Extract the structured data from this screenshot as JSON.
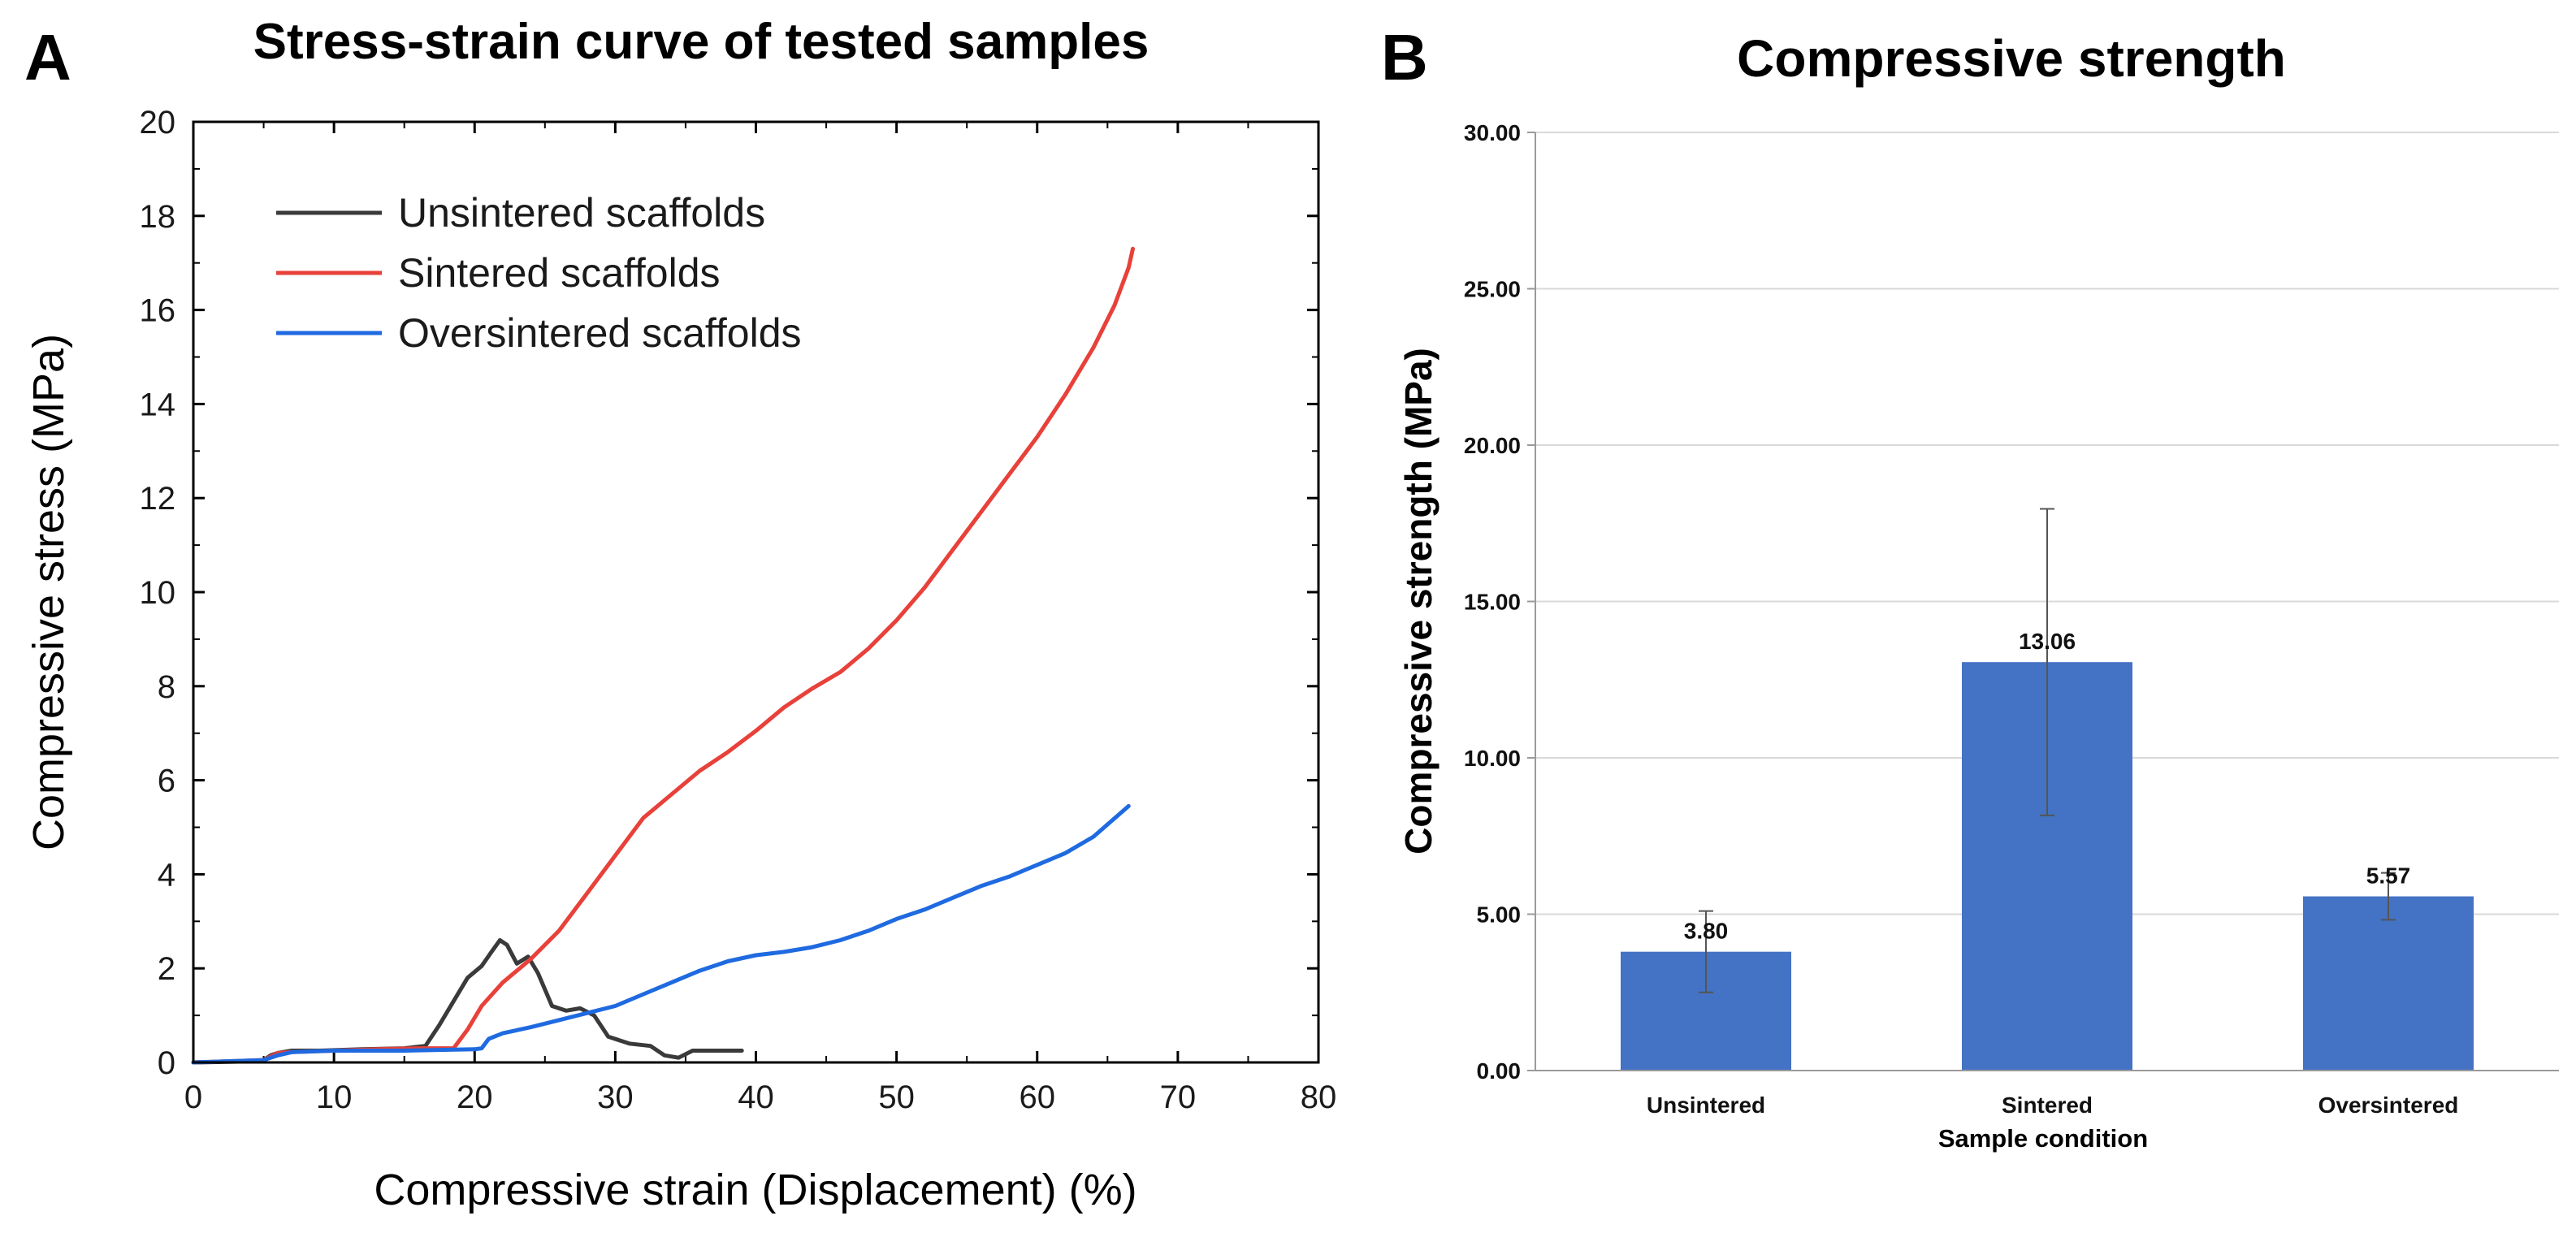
{
  "chart_data": [
    {
      "panel": "A",
      "type": "line",
      "title": "Stress-strain curve of tested samples",
      "xlabel": "Compressive strain (Displacement) (%)",
      "ylabel": "Compressive stress (MPa)",
      "xlim": [
        0,
        80
      ],
      "ylim": [
        0,
        20
      ],
      "xticks": [
        "0",
        "10",
        "20",
        "30",
        "40",
        "50",
        "60",
        "70",
        "80"
      ],
      "yticks": [
        "0",
        "2",
        "4",
        "6",
        "8",
        "10",
        "12",
        "14",
        "16",
        "18",
        "20"
      ],
      "legend_position": "top-left",
      "series": [
        {
          "name": "Unsintered scaffolds",
          "color": "#3a3a3a",
          "points": [
            [
              0,
              0
            ],
            [
              4,
              0.02
            ],
            [
              5,
              0.05
            ],
            [
              5.5,
              0.15
            ],
            [
              6,
              0.2
            ],
            [
              7,
              0.25
            ],
            [
              9,
              0.25
            ],
            [
              12,
              0.28
            ],
            [
              15,
              0.3
            ],
            [
              16.5,
              0.35
            ],
            [
              17.5,
              0.8
            ],
            [
              18.5,
              1.3
            ],
            [
              19.5,
              1.8
            ],
            [
              20.5,
              2.05
            ],
            [
              21.2,
              2.35
            ],
            [
              21.8,
              2.6
            ],
            [
              22.3,
              2.5
            ],
            [
              23,
              2.1
            ],
            [
              23.8,
              2.25
            ],
            [
              24.5,
              1.9
            ],
            [
              25.5,
              1.2
            ],
            [
              26.5,
              1.1
            ],
            [
              27.5,
              1.15
            ],
            [
              28.5,
              1.0
            ],
            [
              29.5,
              0.55
            ],
            [
              31,
              0.4
            ],
            [
              32.5,
              0.35
            ],
            [
              33.5,
              0.15
            ],
            [
              34.5,
              0.1
            ],
            [
              35.5,
              0.25
            ],
            [
              37,
              0.25
            ],
            [
              39,
              0.25
            ]
          ]
        },
        {
          "name": "Sintered scaffolds",
          "color": "#e8413a",
          "points": [
            [
              0,
              0
            ],
            [
              5,
              0.05
            ],
            [
              6,
              0.2
            ],
            [
              7,
              0.22
            ],
            [
              10,
              0.25
            ],
            [
              13,
              0.28
            ],
            [
              16,
              0.3
            ],
            [
              18.5,
              0.3
            ],
            [
              19.5,
              0.7
            ],
            [
              20.5,
              1.2
            ],
            [
              22,
              1.7
            ],
            [
              24,
              2.2
            ],
            [
              26,
              2.8
            ],
            [
              28,
              3.6
            ],
            [
              30,
              4.4
            ],
            [
              32,
              5.2
            ],
            [
              34,
              5.7
            ],
            [
              36,
              6.2
            ],
            [
              38,
              6.6
            ],
            [
              40,
              7.05
            ],
            [
              42,
              7.55
            ],
            [
              44,
              7.95
            ],
            [
              46,
              8.3
            ],
            [
              48,
              8.8
            ],
            [
              50,
              9.4
            ],
            [
              52,
              10.1
            ],
            [
              54,
              10.9
            ],
            [
              56,
              11.7
            ],
            [
              58,
              12.5
            ],
            [
              60,
              13.3
            ],
            [
              62,
              14.2
            ],
            [
              64,
              15.2
            ],
            [
              65.5,
              16.1
            ],
            [
              66.5,
              16.9
            ],
            [
              66.8,
              17.3
            ]
          ]
        },
        {
          "name": "Oversintered scaffolds",
          "color": "#1f6ae0",
          "points": [
            [
              0,
              0
            ],
            [
              5,
              0.05
            ],
            [
              6,
              0.15
            ],
            [
              7,
              0.22
            ],
            [
              10,
              0.25
            ],
            [
              15,
              0.25
            ],
            [
              20,
              0.28
            ],
            [
              20.5,
              0.3
            ],
            [
              21,
              0.5
            ],
            [
              22,
              0.62
            ],
            [
              24,
              0.75
            ],
            [
              26,
              0.9
            ],
            [
              28,
              1.05
            ],
            [
              30,
              1.2
            ],
            [
              32,
              1.45
            ],
            [
              34,
              1.7
            ],
            [
              36,
              1.95
            ],
            [
              38,
              2.15
            ],
            [
              40,
              2.28
            ],
            [
              42,
              2.35
            ],
            [
              44,
              2.45
            ],
            [
              46,
              2.6
            ],
            [
              48,
              2.8
            ],
            [
              50,
              3.05
            ],
            [
              52,
              3.25
            ],
            [
              54,
              3.5
            ],
            [
              56,
              3.75
            ],
            [
              58,
              3.95
            ],
            [
              60,
              4.2
            ],
            [
              62,
              4.45
            ],
            [
              64,
              4.8
            ],
            [
              66.5,
              5.45
            ]
          ]
        }
      ]
    },
    {
      "panel": "B",
      "type": "bar",
      "title": "Compressive strength",
      "xlabel": "Sample condition",
      "ylabel": "Compressive strength (MPa)",
      "ylim": [
        0,
        30
      ],
      "yticks": [
        "0.00",
        "5.00",
        "10.00",
        "15.00",
        "20.00",
        "25.00",
        "30.00"
      ],
      "gridlines": true,
      "bar_color": "#4472c4",
      "categories": [
        "Unsintered",
        "Sintered",
        "Oversintered"
      ],
      "values": [
        3.8,
        13.06,
        5.57
      ],
      "value_labels": [
        "3.80",
        "13.06",
        "5.57"
      ],
      "error": [
        1.3,
        4.9,
        0.75
      ]
    }
  ]
}
